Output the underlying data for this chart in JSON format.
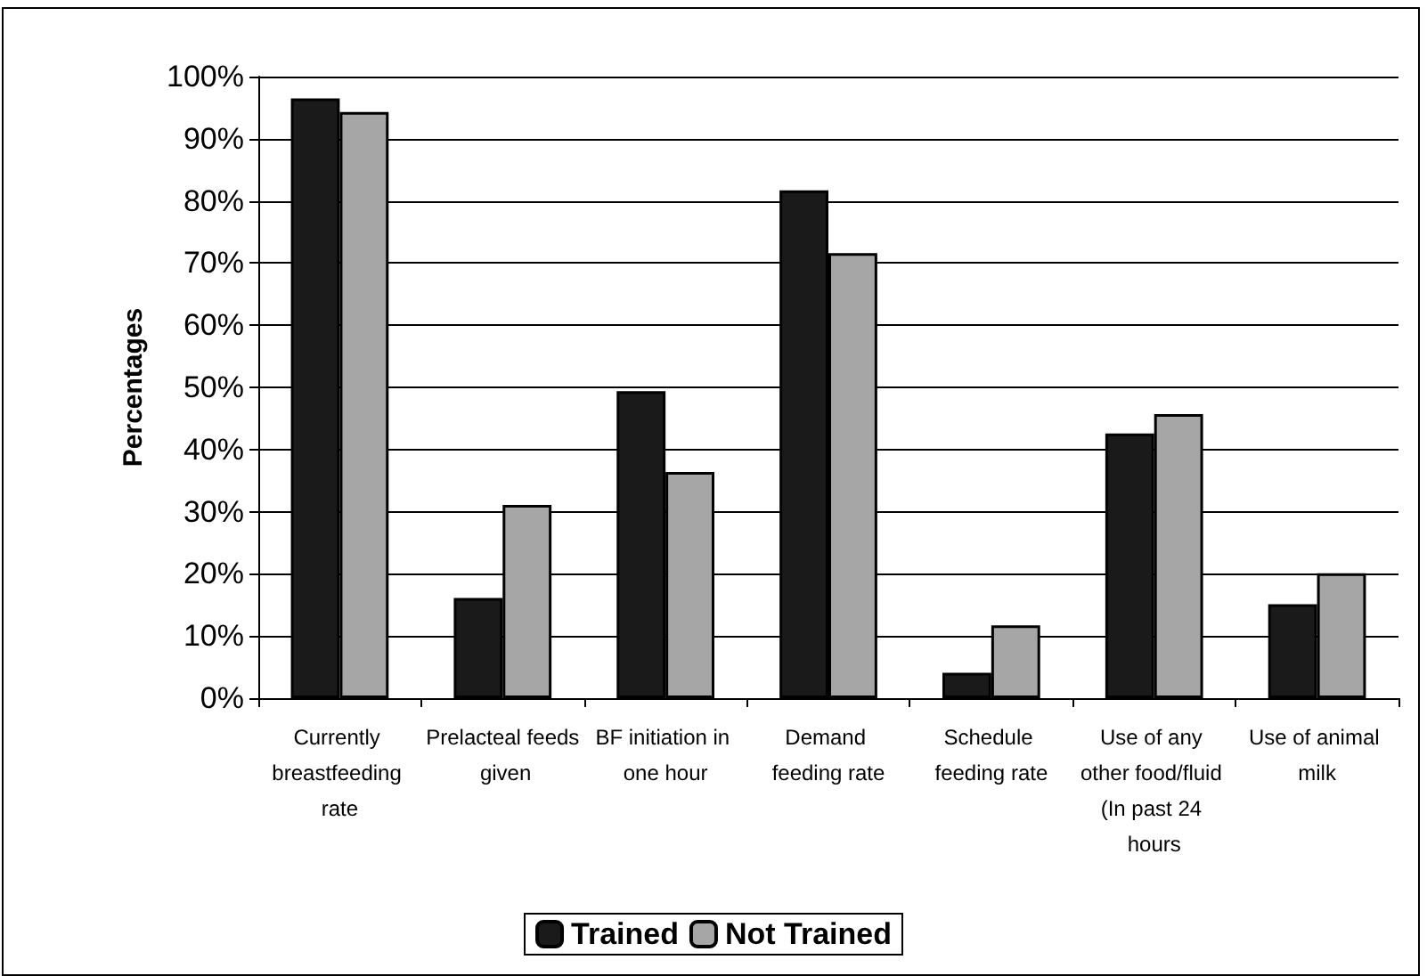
{
  "chart_data": {
    "type": "bar",
    "ylabel": "Percentages",
    "categories": [
      "Currently breastfeeding rate",
      "Prelacteal feeds given",
      "BF initiation in one hour",
      "Demand feeding rate",
      "Schedule feeding rate",
      "Use of any other food/fluid (In past 24 hours",
      "Use of animal milk"
    ],
    "series": [
      {
        "name": "Trained",
        "color": "#1a1a1a",
        "values": [
          96.5,
          16.1,
          49.4,
          81.7,
          4.1,
          42.6,
          15.1
        ]
      },
      {
        "name": "Not Trained",
        "color": "#a6a6a6",
        "values": [
          94.3,
          31.1,
          36.4,
          71.6,
          11.7,
          45.7,
          20.1
        ]
      }
    ],
    "ylim": [
      0,
      100
    ],
    "yticks": [
      {
        "value": 0,
        "label": "0%"
      },
      {
        "value": 10,
        "label": "10%"
      },
      {
        "value": 20,
        "label": "20%"
      },
      {
        "value": 30,
        "label": "30%"
      },
      {
        "value": 40,
        "label": "40%"
      },
      {
        "value": 50,
        "label": "50%"
      },
      {
        "value": 60,
        "label": "60%"
      },
      {
        "value": 70,
        "label": "70%"
      },
      {
        "value": 80,
        "label": "80%"
      },
      {
        "value": 90,
        "label": "90%"
      },
      {
        "value": 100,
        "label": "100%"
      }
    ],
    "grid": "y",
    "legend": "bottom"
  }
}
